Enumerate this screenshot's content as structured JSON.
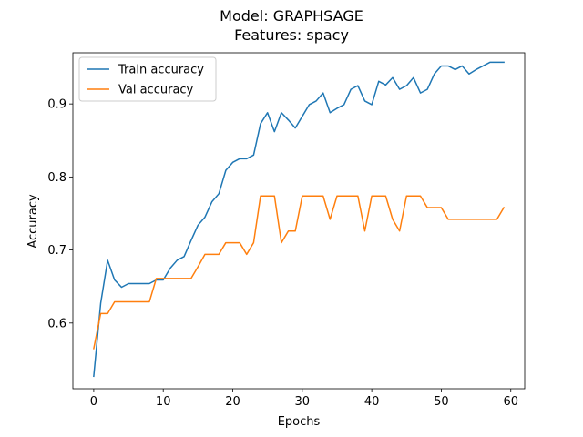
{
  "chart_data": {
    "type": "line",
    "title": "Model: GRAPHSAGE",
    "subtitle": "Features: spacy",
    "xlabel": "Epochs",
    "ylabel": "Accuracy",
    "xlim": [
      -3,
      62
    ],
    "ylim": [
      0.51,
      0.97
    ],
    "xticks": [
      0,
      10,
      20,
      30,
      40,
      50,
      60
    ],
    "yticks": [
      0.6,
      0.7,
      0.8,
      0.9
    ],
    "ytick_labels": [
      "0.6",
      "0.7",
      "0.8",
      "0.9"
    ],
    "grid": false,
    "legend_position": "top-left",
    "x": [
      0,
      1,
      2,
      3,
      4,
      5,
      6,
      7,
      8,
      9,
      10,
      11,
      12,
      13,
      14,
      15,
      16,
      17,
      18,
      19,
      20,
      21,
      22,
      23,
      24,
      25,
      26,
      27,
      28,
      29,
      30,
      31,
      32,
      33,
      34,
      35,
      36,
      37,
      38,
      39,
      40,
      41,
      42,
      43,
      44,
      45,
      46,
      47,
      48,
      49,
      50,
      51,
      52,
      53,
      54,
      55,
      56,
      57,
      58,
      59
    ],
    "series": [
      {
        "name": "Train accuracy",
        "color": "#1f77b4",
        "values": [
          0.527,
          0.627,
          0.686,
          0.659,
          0.649,
          0.654,
          0.654,
          0.654,
          0.654,
          0.659,
          0.659,
          0.675,
          0.686,
          0.691,
          0.713,
          0.734,
          0.745,
          0.766,
          0.777,
          0.809,
          0.82,
          0.825,
          0.825,
          0.83,
          0.873,
          0.888,
          0.862,
          0.888,
          0.878,
          0.867,
          0.883,
          0.899,
          0.904,
          0.915,
          0.888,
          0.894,
          0.899,
          0.92,
          0.925,
          0.904,
          0.899,
          0.931,
          0.926,
          0.936,
          0.92,
          0.925,
          0.936,
          0.915,
          0.92,
          0.941,
          0.952,
          0.952,
          0.947,
          0.952,
          0.941,
          0.947,
          0.952,
          0.957,
          0.957,
          0.957
        ]
      },
      {
        "name": "Val accuracy",
        "color": "#ff7f0e",
        "values": [
          0.565,
          0.613,
          0.613,
          0.629,
          0.629,
          0.629,
          0.629,
          0.629,
          0.629,
          0.661,
          0.661,
          0.661,
          0.661,
          0.661,
          0.661,
          0.677,
          0.694,
          0.694,
          0.694,
          0.71,
          0.71,
          0.71,
          0.694,
          0.71,
          0.774,
          0.774,
          0.774,
          0.71,
          0.726,
          0.726,
          0.774,
          0.774,
          0.774,
          0.774,
          0.742,
          0.774,
          0.774,
          0.774,
          0.774,
          0.726,
          0.774,
          0.774,
          0.774,
          0.742,
          0.726,
          0.774,
          0.774,
          0.774,
          0.758,
          0.758,
          0.758,
          0.742,
          0.742,
          0.742,
          0.742,
          0.742,
          0.742,
          0.742,
          0.742,
          0.758
        ]
      }
    ]
  }
}
